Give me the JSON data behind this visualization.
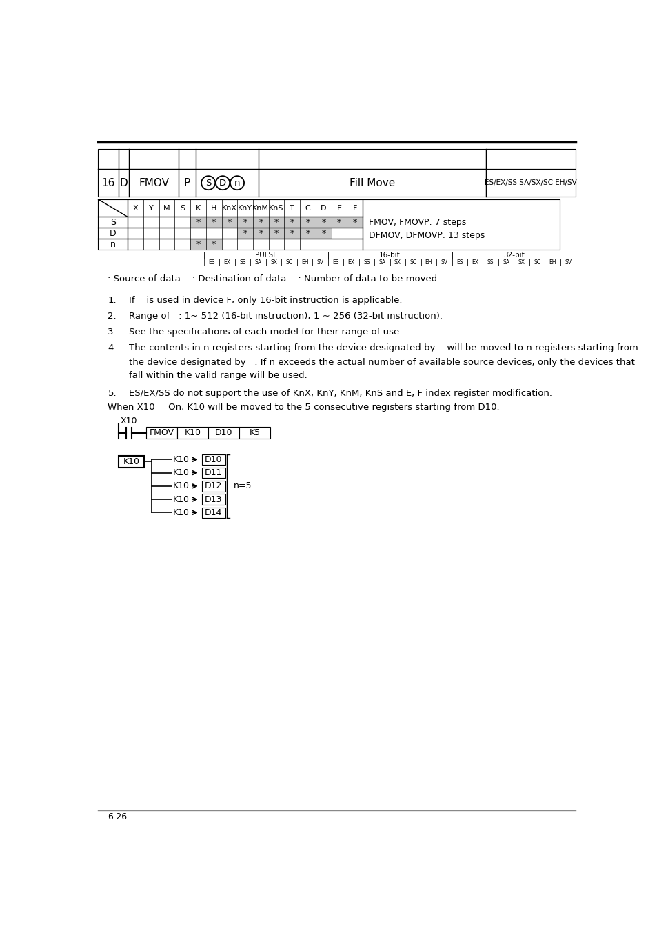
{
  "page_number": "6-26",
  "header_num": "16",
  "header_type": "D",
  "header_mnemonic": "FMOV",
  "header_pulse": "P",
  "header_operands": [
    "S",
    "D",
    "n"
  ],
  "header_desc": "Fill Move",
  "header_compat": "ES/EX/SS SA/SX/SC EH/SV",
  "table_headers": [
    "X",
    "Y",
    "M",
    "S",
    "K",
    "H",
    "KnX",
    "KnY",
    "KnM",
    "KnS",
    "T",
    "C",
    "D",
    "E",
    "F"
  ],
  "table_S": [
    null,
    null,
    null,
    null,
    "*",
    "*",
    "*",
    "*",
    "*",
    "*",
    "*",
    "*",
    "*",
    "*",
    "*"
  ],
  "table_D": [
    null,
    null,
    null,
    null,
    null,
    null,
    null,
    "*",
    "*",
    "*",
    "*",
    "*",
    "*",
    null,
    null
  ],
  "table_n": [
    null,
    null,
    null,
    null,
    "*",
    "*",
    null,
    null,
    null,
    null,
    null,
    null,
    null,
    null,
    null
  ],
  "shaded_S": [
    4,
    5,
    6,
    7,
    8,
    9,
    10,
    11,
    12,
    13,
    14
  ],
  "shaded_D": [
    7,
    8,
    9,
    10,
    11,
    12
  ],
  "shaded_n": [
    4,
    5
  ],
  "steps_text1": "FMOV, FMOVP: 7 steps",
  "steps_text2": "DFMOV, DFMOVP: 13 steps",
  "pulse_codes": [
    "ES",
    "EX",
    "SS",
    "SA",
    "SX",
    "SC",
    "EH",
    "SV"
  ],
  "source_line": ": Source of data    : Destination of data    : Number of data to be moved",
  "item1": "If    is used in device F, only 16-bit instruction is applicable.",
  "item2": "Range of   : 1~ 512 (16-bit instruction); 1 ~ 256 (32-bit instruction).",
  "item3": "See the specifications of each model for their range of use.",
  "item4a": "The contents in n registers starting from the device designated by    will be moved to n registers starting from",
  "item4b": "the device designated by   . If n exceeds the actual number of available source devices, only the devices that",
  "item4c": "fall within the valid range will be used.",
  "item5": "ES/EX/SS do not support the use of KnX, KnY, KnM, KnS and E, F index register modification.",
  "example_text": "When X10 = On, K10 will be moved to the 5 consecutive registers starting from D10.",
  "ladder_cells": [
    "FMOV",
    "K10",
    "D10",
    "K5"
  ],
  "diagram_branches": [
    "K10",
    "K10",
    "K10",
    "K10",
    "K10"
  ],
  "diagram_targets": [
    "D10",
    "D11",
    "D12",
    "D13",
    "D14"
  ],
  "diagram_n": "n=5",
  "shaded_color": "#c8c8c8",
  "bg_color": "#ffffff"
}
